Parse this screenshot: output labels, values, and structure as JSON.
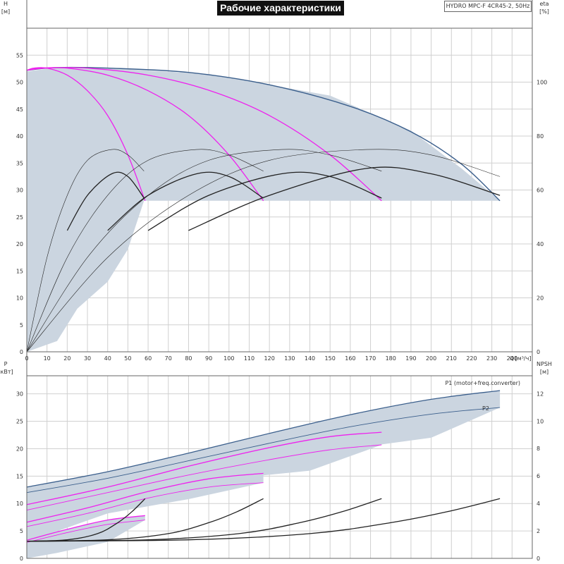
{
  "title": "Рабочие характеристики",
  "model": "HYDRO MPC-F 4CR45-2, 50Hz",
  "colors": {
    "area": "#cbd5e0",
    "max_curve": "#3b5f8c",
    "reduced": "#ee22ee",
    "eff": "#222222",
    "grid": "#d0d0d0"
  },
  "chart_data": [
    {
      "type": "line",
      "name": "head-efficiency",
      "xlabel": "Q [м³/ч]",
      "x_unit_label": "Q",
      "x_unit": "[м³/ч]",
      "ylabel": "H",
      "ylabel_unit": "[м]",
      "y2label": "eta",
      "y2label_unit": "[%]",
      "xlim": [
        0,
        250
      ],
      "ylim": [
        0,
        60
      ],
      "y2lim": [
        0,
        120
      ],
      "xticks": [
        0,
        10,
        20,
        30,
        40,
        50,
        60,
        70,
        80,
        90,
        100,
        110,
        120,
        130,
        140,
        150,
        160,
        170,
        180,
        190,
        200,
        210,
        220,
        230,
        240
      ],
      "yticks": [
        0,
        5,
        10,
        15,
        20,
        25,
        30,
        35,
        40,
        45,
        50,
        55
      ],
      "y2ticks": [
        0,
        20,
        40,
        60,
        80,
        100
      ],
      "grid": true,
      "operating_area": [
        [
          0,
          52
        ],
        [
          13,
          52.6
        ],
        [
          30,
          52.8
        ],
        [
          90,
          51.5
        ],
        [
          150,
          47.5
        ],
        [
          190,
          41
        ],
        [
          215,
          34
        ],
        [
          234,
          28
        ],
        [
          58,
          28
        ],
        [
          50,
          19
        ],
        [
          40,
          13
        ],
        [
          25,
          8
        ],
        [
          15,
          2
        ],
        [
          0,
          0
        ]
      ],
      "head_series": [
        {
          "pumps": 4,
          "points": [
            [
              0,
              52.2
            ],
            [
              15,
              52.7
            ],
            [
              40,
              52.6
            ],
            [
              80,
              51.8
            ],
            [
              120,
              49.5
            ],
            [
              160,
              45.5
            ],
            [
              190,
              40.8
            ],
            [
              215,
              34.8
            ],
            [
              234,
              28
            ]
          ]
        },
        {
          "pumps": 3,
          "points": [
            [
              0,
              52.2
            ],
            [
              10,
              52.6
            ],
            [
              30,
              52.6
            ],
            [
              60,
              51.3
            ],
            [
              90,
              48.5
            ],
            [
              120,
              43.8
            ],
            [
              150,
              36.5
            ],
            [
              175.5,
              28
            ]
          ]
        },
        {
          "pumps": 2,
          "points": [
            [
              0,
              52.2
            ],
            [
              7,
              52.6
            ],
            [
              20,
              52.6
            ],
            [
              40,
              51.3
            ],
            [
              60,
              48.4
            ],
            [
              80,
              43.8
            ],
            [
              100,
              36.5
            ],
            [
              117,
              28
            ]
          ]
        },
        {
          "pumps": 1,
          "points": [
            [
              0,
              52.2
            ],
            [
              3.5,
              52.6
            ],
            [
              10,
              52.6
            ],
            [
              20,
              51.3
            ],
            [
              30,
              48.4
            ],
            [
              40,
              43.8
            ],
            [
              50,
              36.5
            ],
            [
              58.5,
              28
            ]
          ]
        }
      ],
      "eta_series": [
        {
          "points": [
            [
              0,
              0
            ],
            [
              10,
              35
            ],
            [
              20,
              58
            ],
            [
              30,
              71
            ],
            [
              42,
              75
            ],
            [
              50,
              73
            ],
            [
              58,
              67
            ]
          ]
        },
        {
          "points": [
            [
              20,
              45
            ],
            [
              30,
              58
            ],
            [
              42,
              66
            ],
            [
              50,
              65
            ],
            [
              58,
              57
            ]
          ]
        },
        {
          "points": [
            [
              0,
              0
            ],
            [
              20,
              35
            ],
            [
              40,
              58
            ],
            [
              60,
              71
            ],
            [
              84,
              75
            ],
            [
              100,
              73
            ],
            [
              117,
              67
            ]
          ]
        },
        {
          "points": [
            [
              40,
              45
            ],
            [
              60,
              58
            ],
            [
              84,
              66
            ],
            [
              100,
              65
            ],
            [
              117,
              57
            ]
          ]
        },
        {
          "points": [
            [
              0,
              0
            ],
            [
              30,
              35
            ],
            [
              60,
              58
            ],
            [
              90,
              71
            ],
            [
              126,
              75
            ],
            [
              150,
              73
            ],
            [
              175.5,
              67
            ]
          ]
        },
        {
          "points": [
            [
              60,
              45
            ],
            [
              90,
              58
            ],
            [
              126,
              66
            ],
            [
              150,
              65
            ],
            [
              175.5,
              57
            ]
          ]
        },
        {
          "points": [
            [
              0,
              0
            ],
            [
              40,
              35
            ],
            [
              80,
              58
            ],
            [
              120,
              71
            ],
            [
              168,
              75
            ],
            [
              200,
              73
            ],
            [
              234,
              65
            ]
          ]
        },
        {
          "points": [
            [
              80,
              45
            ],
            [
              120,
              58
            ],
            [
              168,
              68
            ],
            [
              200,
              66
            ],
            [
              234,
              58
            ]
          ]
        }
      ]
    },
    {
      "type": "line",
      "name": "power-npsh",
      "ylabel": "P",
      "ylabel_unit": "[кВт]",
      "y2label": "NPSH",
      "y2label_unit": "[м]",
      "xlim": [
        0,
        250
      ],
      "ylim": [
        0,
        33.3
      ],
      "y2lim": [
        0,
        13.3
      ],
      "yticks": [
        0,
        5,
        10,
        15,
        20,
        25,
        30
      ],
      "y2ticks": [
        0,
        2,
        4,
        6,
        8,
        10,
        12
      ],
      "grid": true,
      "power_bands": [
        {
          "upper": [
            [
              0,
              13
            ],
            [
              40,
              15.8
            ],
            [
              80,
              19.2
            ],
            [
              120,
              22.8
            ],
            [
              160,
              26.2
            ],
            [
              200,
              29
            ],
            [
              234,
              30.6
            ]
          ],
          "lower": [
            [
              0,
              9
            ],
            [
              60,
              14.5
            ],
            [
              120,
              18.5
            ],
            [
              160,
              20
            ],
            [
              200,
              22
            ],
            [
              234,
              27.5
            ]
          ]
        },
        {
          "upper": [
            [
              0,
              9.8
            ],
            [
              40,
              13
            ],
            [
              80,
              16.8
            ],
            [
              120,
              20.2
            ],
            [
              150,
              22.2
            ],
            [
              175.5,
              23
            ]
          ],
          "lower": [
            [
              0,
              6
            ],
            [
              60,
              11.8
            ],
            [
              100,
              14.5
            ],
            [
              140,
              16
            ],
            [
              175.5,
              20.7
            ]
          ]
        },
        {
          "upper": [
            [
              0,
              6.6
            ],
            [
              30,
              9.2
            ],
            [
              60,
              12.2
            ],
            [
              90,
              14.5
            ],
            [
              117,
              15.5
            ]
          ],
          "lower": [
            [
              0,
              3
            ],
            [
              40,
              8.2
            ],
            [
              80,
              10.8
            ],
            [
              117,
              13.8
            ]
          ]
        },
        {
          "upper": [
            [
              0,
              3.3
            ],
            [
              20,
              5.3
            ],
            [
              40,
              7
            ],
            [
              58.5,
              7.8
            ]
          ],
          "lower": [
            [
              0,
              0
            ],
            [
              15,
              1
            ],
            [
              40,
              3
            ],
            [
              58.5,
              7
            ]
          ]
        }
      ],
      "p1_series": [
        {
          "name": "P1 (motor+freq.converter)",
          "points": [
            [
              0,
              13
            ],
            [
              40,
              15.8
            ],
            [
              80,
              19.2
            ],
            [
              120,
              22.8
            ],
            [
              160,
              26.2
            ],
            [
              200,
              29
            ],
            [
              234,
              30.6
            ]
          ]
        },
        {
          "points": [
            [
              0,
              9.8
            ],
            [
              40,
              13
            ],
            [
              80,
              16.8
            ],
            [
              120,
              20.2
            ],
            [
              150,
              22.2
            ],
            [
              175.5,
              23
            ]
          ]
        },
        {
          "points": [
            [
              0,
              6.6
            ],
            [
              30,
              9.2
            ],
            [
              60,
              12.2
            ],
            [
              90,
              14.5
            ],
            [
              117,
              15.5
            ]
          ]
        },
        {
          "points": [
            [
              0,
              3.3
            ],
            [
              20,
              5.3
            ],
            [
              40,
              7
            ],
            [
              58.5,
              7.8
            ]
          ]
        }
      ],
      "p2_series": [
        {
          "name": "P2",
          "points": [
            [
              0,
              12
            ],
            [
              40,
              14.6
            ],
            [
              80,
              17.8
            ],
            [
              120,
              21
            ],
            [
              160,
              24
            ],
            [
              200,
              26.3
            ],
            [
              234,
              27.5
            ]
          ]
        },
        {
          "points": [
            [
              0,
              8.8
            ],
            [
              40,
              12
            ],
            [
              80,
              15.2
            ],
            [
              120,
              18
            ],
            [
              150,
              19.8
            ],
            [
              175.5,
              20.7
            ]
          ]
        },
        {
          "points": [
            [
              0,
              5.8
            ],
            [
              30,
              8.2
            ],
            [
              60,
              11
            ],
            [
              90,
              13
            ],
            [
              117,
              13.8
            ]
          ]
        },
        {
          "points": [
            [
              0,
              2.9
            ],
            [
              20,
              4.7
            ],
            [
              40,
              6.2
            ],
            [
              58.5,
              7
            ]
          ]
        }
      ],
      "npsh_series": [
        {
          "points": [
            [
              0,
              1.25
            ],
            [
              20,
              1.35
            ],
            [
              35,
              1.8
            ],
            [
              45,
              2.6
            ],
            [
              52,
              3.4
            ],
            [
              58.5,
              4.35
            ]
          ]
        },
        {
          "points": [
            [
              0,
              1.25
            ],
            [
              40,
              1.35
            ],
            [
              70,
              1.8
            ],
            [
              90,
              2.6
            ],
            [
              104,
              3.4
            ],
            [
              117,
              4.35
            ]
          ]
        },
        {
          "points": [
            [
              0,
              1.25
            ],
            [
              60,
              1.35
            ],
            [
              105,
              1.8
            ],
            [
              135,
              2.6
            ],
            [
              156,
              3.4
            ],
            [
              175.5,
              4.35
            ]
          ]
        },
        {
          "points": [
            [
              0,
              1.25
            ],
            [
              80,
              1.35
            ],
            [
              140,
              1.8
            ],
            [
              180,
              2.6
            ],
            [
              208,
              3.4
            ],
            [
              234,
              4.35
            ]
          ]
        }
      ]
    }
  ]
}
